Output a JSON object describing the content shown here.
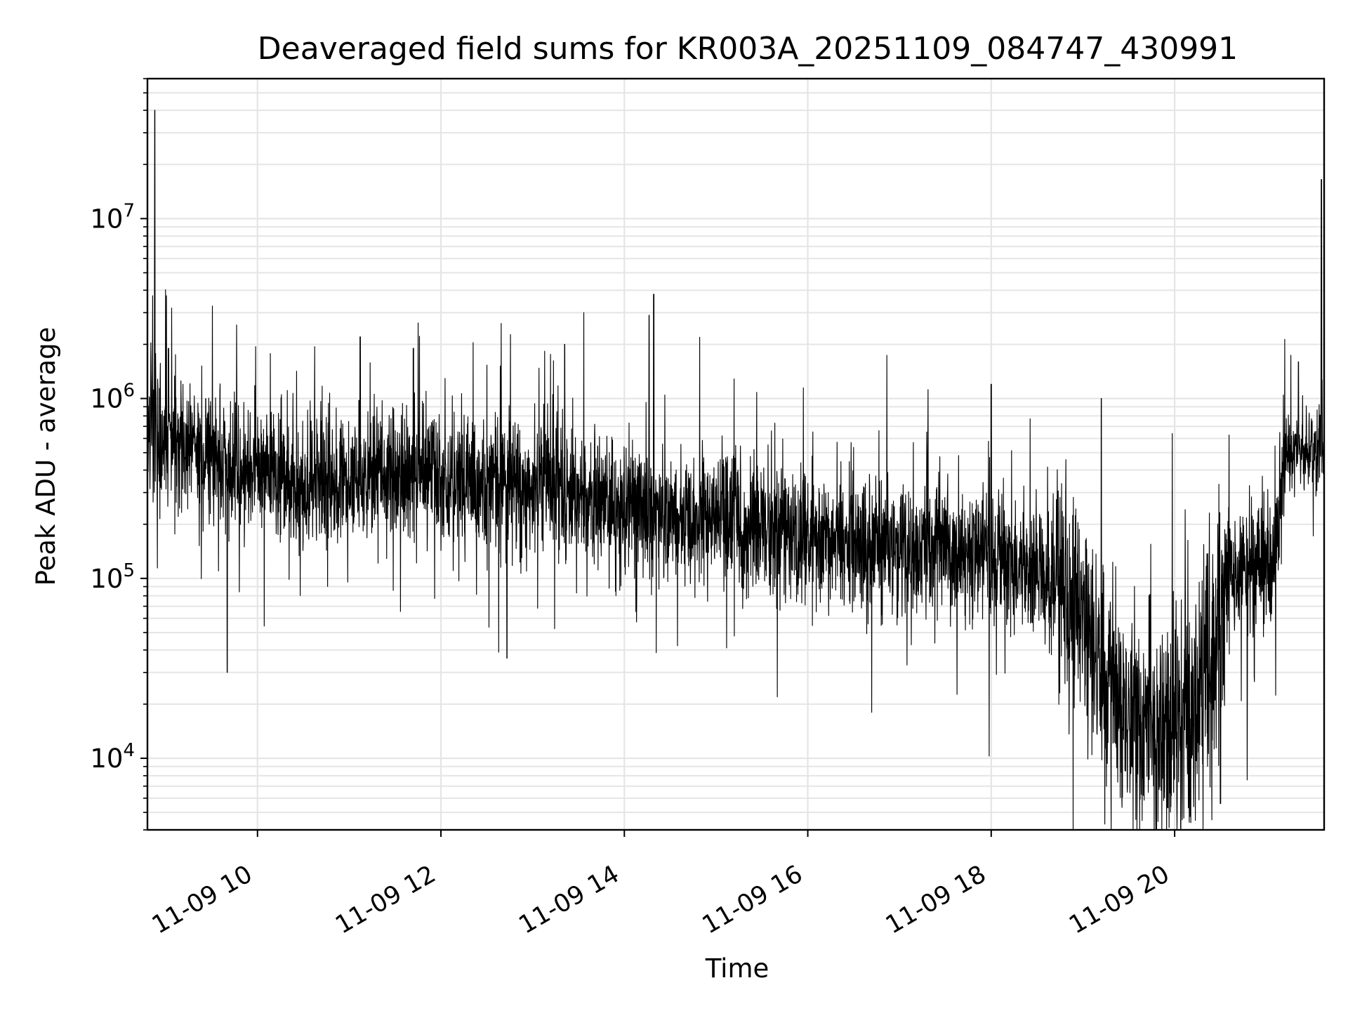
{
  "chart_data": {
    "type": "line",
    "title": "Deaveraged field sums for KR003A_20251109_084747_430991",
    "xlabel": "Time",
    "ylabel": "Peak ADU - average",
    "x_unit": "hour of day (2025-11-09)",
    "xlim": [
      8.8,
      21.63
    ],
    "ylim": [
      4000,
      60000000
    ],
    "yscale": "log",
    "grid": true,
    "line_color": "#000000",
    "grid_color": "#e5e5e5",
    "x_tick_values": [
      10,
      12,
      14,
      16,
      18,
      20
    ],
    "x_tick_labels": [
      "11-09 10",
      "11-09 12",
      "11-09 14",
      "11-09 16",
      "11-09 18",
      "11-09 20"
    ],
    "y_tick_values": [
      10000,
      100000,
      1000000,
      10000000
    ],
    "y_tick_base_labels": [
      "10",
      "10",
      "10",
      "10"
    ],
    "y_tick_exponents": [
      "4",
      "5",
      "6",
      "7"
    ],
    "baseline_profile": [
      {
        "t": 8.8,
        "y": 700000
      },
      {
        "t": 9.5,
        "y": 450000
      },
      {
        "t": 10.5,
        "y": 330000
      },
      {
        "t": 11.5,
        "y": 380000
      },
      {
        "t": 12.5,
        "y": 340000
      },
      {
        "t": 13.5,
        "y": 300000
      },
      {
        "t": 14.5,
        "y": 230000
      },
      {
        "t": 15.5,
        "y": 200000
      },
      {
        "t": 16.5,
        "y": 160000
      },
      {
        "t": 17.5,
        "y": 140000
      },
      {
        "t": 18.3,
        "y": 120000
      },
      {
        "t": 18.8,
        "y": 90000
      },
      {
        "t": 19.1,
        "y": 45000
      },
      {
        "t": 19.4,
        "y": 20000
      },
      {
        "t": 19.7,
        "y": 15000
      },
      {
        "t": 20.0,
        "y": 14000
      },
      {
        "t": 20.2,
        "y": 17000
      },
      {
        "t": 20.4,
        "y": 40000
      },
      {
        "t": 20.6,
        "y": 110000
      },
      {
        "t": 21.1,
        "y": 130000
      },
      {
        "t": 21.2,
        "y": 500000
      },
      {
        "t": 21.63,
        "y": 520000
      }
    ],
    "notable_peaks": [
      {
        "t": 8.88,
        "y": 40000000
      },
      {
        "t": 9.03,
        "y": 1900000
      },
      {
        "t": 11.12,
        "y": 2200000
      },
      {
        "t": 11.7,
        "y": 1900000
      },
      {
        "t": 13.35,
        "y": 2000000
      },
      {
        "t": 14.27,
        "y": 2900000
      },
      {
        "t": 14.32,
        "y": 3800000
      },
      {
        "t": 18.0,
        "y": 1200000
      },
      {
        "t": 19.2,
        "y": 1000000
      },
      {
        "t": 21.35,
        "y": 1600000
      },
      {
        "t": 21.6,
        "y": 16500000
      }
    ],
    "notable_dips": [
      {
        "t": 9.67,
        "y": 30000
      },
      {
        "t": 12.72,
        "y": 36000
      },
      {
        "t": 19.64,
        "y": 6300
      },
      {
        "t": 20.5,
        "y": 5600
      }
    ]
  }
}
